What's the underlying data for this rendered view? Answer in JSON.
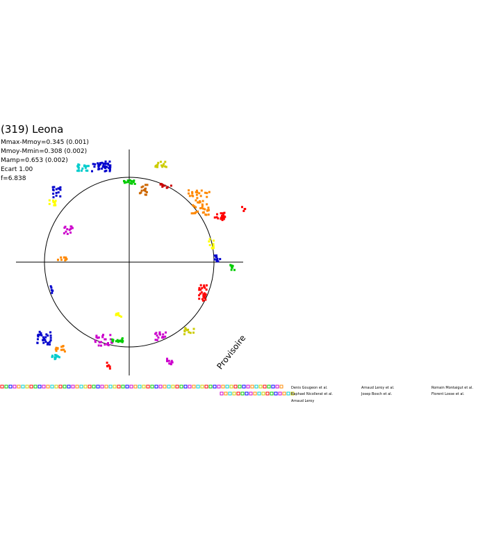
{
  "title": "(319) Leona",
  "stats": [
    "Mmax-Mmoy=0.345 (0.001)",
    "Mmoy-Mmin=0.308 (0.002)",
    "Mamp=0.653 (0.002)",
    "Ecart 1.00",
    "f=6.838"
  ],
  "stamp": "Provisoire",
  "legend": [
    "Denis Gougeon et al.",
    "Raphael Nicollerat et al.",
    "Arnaud Leroy",
    "Arnaud Leroy et al.",
    "Josep Bosch et al.",
    "Romain Montaigut et al.",
    "Florent Losse et al."
  ]
}
